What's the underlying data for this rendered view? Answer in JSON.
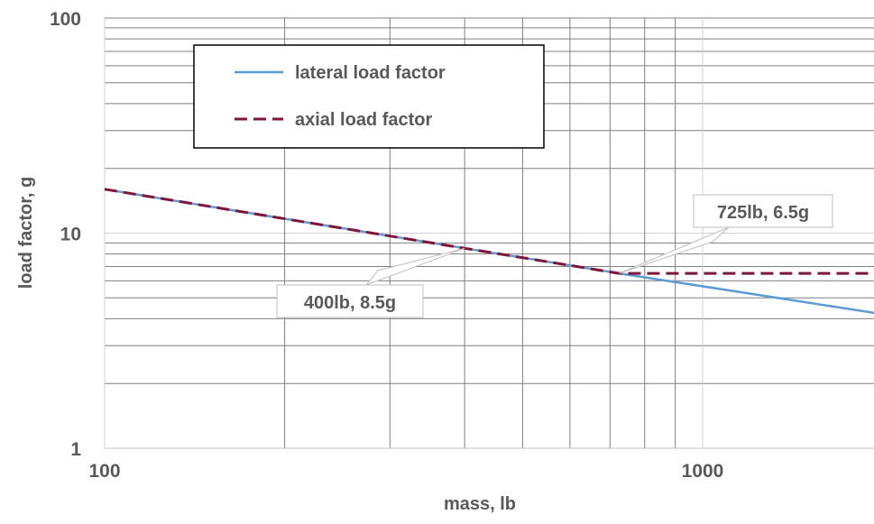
{
  "chart_data": {
    "type": "line",
    "x_scale": "log",
    "y_scale": "log",
    "xlabel": "mass,  lb",
    "ylabel": "load factor,  g",
    "xlim": [
      100,
      2000
    ],
    "ylim": [
      1,
      100
    ],
    "x_ticks": [
      100,
      1000
    ],
    "x_tick_labels": [
      "100",
      "1000"
    ],
    "y_ticks": [
      1,
      10,
      100
    ],
    "y_tick_labels": [
      "1",
      "10",
      "100"
    ],
    "grid": true,
    "legend": "top-left",
    "series": [
      {
        "name": "lateral load factor",
        "style": "solid",
        "color": "#5b9bd5",
        "x": [
          100,
          400,
          725,
          2000
        ],
        "y": [
          16,
          8.5,
          6.5,
          4.2
        ]
      },
      {
        "name": "axial load factor",
        "style": "dashed",
        "color": "#7f1538",
        "x": [
          100,
          400,
          725,
          2000
        ],
        "y": [
          16,
          8.5,
          6.5,
          6.5
        ]
      }
    ],
    "annotations": [
      {
        "text": "400lb, 8.5g",
        "x": 400,
        "y": 8.5
      },
      {
        "text": "725lb, 6.5g",
        "x": 725,
        "y": 6.5
      }
    ]
  }
}
